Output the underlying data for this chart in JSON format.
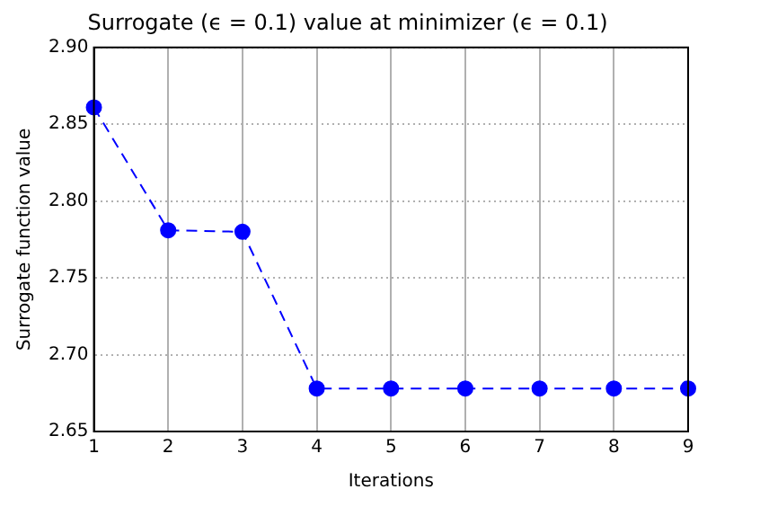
{
  "chart_data": {
    "type": "line",
    "title": "Surrogate (ϵ = 0.1) value at minimizer (ϵ = 0.1)",
    "xlabel": "Iterations",
    "ylabel": "Surrogate function value",
    "x": [
      1,
      2,
      3,
      4,
      5,
      6,
      7,
      8,
      9
    ],
    "series": [
      {
        "color": "#0000ff",
        "values": [
          2.861,
          2.781,
          2.78,
          2.678,
          2.678,
          2.678,
          2.678,
          2.678,
          2.678
        ]
      }
    ],
    "xlim": [
      1,
      9
    ],
    "xticks": [
      1,
      2,
      3,
      4,
      5,
      6,
      7,
      8,
      9
    ],
    "ylim": [
      2.65,
      2.9
    ],
    "yticks": [
      {
        "value": 2.65,
        "label": "2.65"
      },
      {
        "value": 2.7,
        "label": "2.70"
      },
      {
        "value": 2.75,
        "label": "2.75"
      },
      {
        "value": 2.8,
        "label": "2.80"
      },
      {
        "value": 2.85,
        "label": "2.85"
      },
      {
        "value": 2.9,
        "label": "2.90"
      }
    ],
    "grid": true,
    "legend": false,
    "marker": "circle",
    "line_style": "dashed"
  }
}
